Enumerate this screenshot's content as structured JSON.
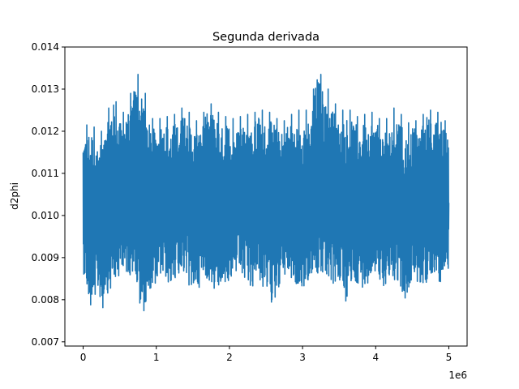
{
  "chart_data": {
    "type": "line",
    "title": "Segunda derivada",
    "xlabel": "",
    "ylabel": "d2phi",
    "x_offset_label": "1e6",
    "xlim": [
      -250000,
      5250000
    ],
    "ylim": [
      0.0069,
      0.014
    ],
    "x_ticks": [
      0,
      1,
      2,
      3,
      4,
      5
    ],
    "y_ticks": [
      "0.007",
      "0.008",
      "0.009",
      "0.010",
      "0.011",
      "0.012",
      "0.013",
      "0.014"
    ],
    "grid": false,
    "series": [
      {
        "color": "#1f77b4",
        "x": [
          0,
          100000,
          200000,
          300000,
          400000,
          500000,
          600000,
          700000,
          800000,
          900000,
          1000000,
          1100000,
          1200000,
          1300000,
          1400000,
          1500000,
          1600000,
          1700000,
          1800000,
          1900000,
          2000000,
          2100000,
          2200000,
          2300000,
          2400000,
          2500000,
          2600000,
          2700000,
          2800000,
          2900000,
          3000000,
          3100000,
          3200000,
          3300000,
          3400000,
          3500000,
          3600000,
          3700000,
          3800000,
          3900000,
          4000000,
          4100000,
          4200000,
          4300000,
          4400000,
          4500000,
          4600000,
          4700000,
          4800000,
          4900000,
          5000000
        ],
        "y_min": [
          0.0085,
          0.0076,
          0.008,
          0.0074,
          0.0081,
          0.0083,
          0.0084,
          0.0083,
          0.0072,
          0.008,
          0.0082,
          0.0083,
          0.0081,
          0.0084,
          0.0082,
          0.008,
          0.0081,
          0.0083,
          0.0079,
          0.0082,
          0.0081,
          0.0084,
          0.0082,
          0.008,
          0.0083,
          0.0078,
          0.0076,
          0.0082,
          0.0084,
          0.0081,
          0.008,
          0.0083,
          0.0082,
          0.0084,
          0.0081,
          0.0082,
          0.0076,
          0.0083,
          0.008,
          0.0082,
          0.0084,
          0.0081,
          0.0083,
          0.0082,
          0.0076,
          0.0083,
          0.0082,
          0.008,
          0.0084,
          0.0081,
          0.0086
        ],
        "y_max": [
          0.012,
          0.0123,
          0.0119,
          0.0121,
          0.013,
          0.0124,
          0.0125,
          0.0133,
          0.0134,
          0.0124,
          0.0122,
          0.0124,
          0.0123,
          0.0125,
          0.0126,
          0.0123,
          0.0122,
          0.0127,
          0.0126,
          0.0123,
          0.0124,
          0.0122,
          0.0125,
          0.0123,
          0.0126,
          0.0124,
          0.0125,
          0.0121,
          0.0124,
          0.0124,
          0.0126,
          0.0124,
          0.0136,
          0.0131,
          0.0129,
          0.0124,
          0.0126,
          0.0124,
          0.0123,
          0.0125,
          0.0124,
          0.0122,
          0.0124,
          0.0127,
          0.0121,
          0.0123,
          0.0122,
          0.0126,
          0.0124,
          0.0125,
          0.012
        ]
      }
    ]
  }
}
